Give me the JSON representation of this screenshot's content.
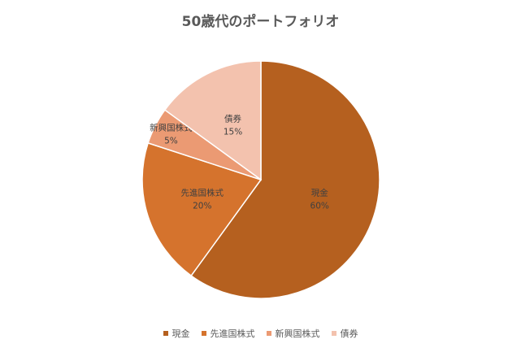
{
  "chart_data": {
    "type": "pie",
    "title": "50歳代のポートフォリオ",
    "categories": [
      "現金",
      "先進国株式",
      "新興国株式",
      "債券"
    ],
    "values": [
      60,
      20,
      5,
      15
    ],
    "value_labels": [
      "60%",
      "20%",
      "5%",
      "15%"
    ],
    "colors": [
      "#B5601F",
      "#D5732D",
      "#EB9A73",
      "#F3C2AE"
    ],
    "legend_position": "bottom"
  }
}
